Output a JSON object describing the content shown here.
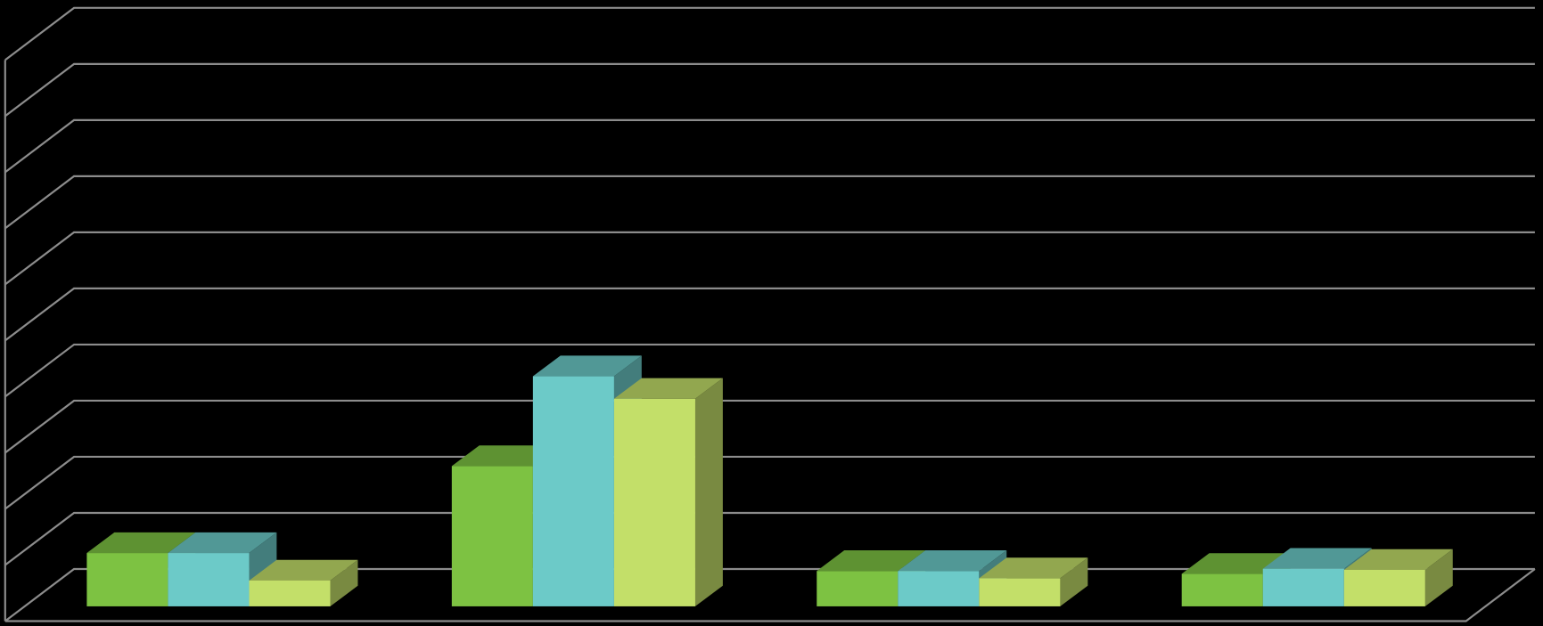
{
  "chart_data": {
    "type": "bar",
    "categories": [
      null,
      null,
      null,
      null
    ],
    "series": [
      {
        "color": "#7dc242",
        "values": [
          0.95,
          2.5,
          0.63,
          0.58
        ]
      },
      {
        "color": "#6ccac8",
        "values": [
          0.95,
          4.1,
          0.63,
          0.67
        ]
      },
      {
        "color": "#c3df69",
        "values": [
          0.46,
          3.7,
          0.5,
          0.65
        ]
      }
    ],
    "ylim": [
      0,
      10
    ],
    "yticks": [
      0,
      1,
      2,
      3,
      4,
      5,
      6,
      7,
      8,
      9,
      10
    ],
    "grid": true
  }
}
